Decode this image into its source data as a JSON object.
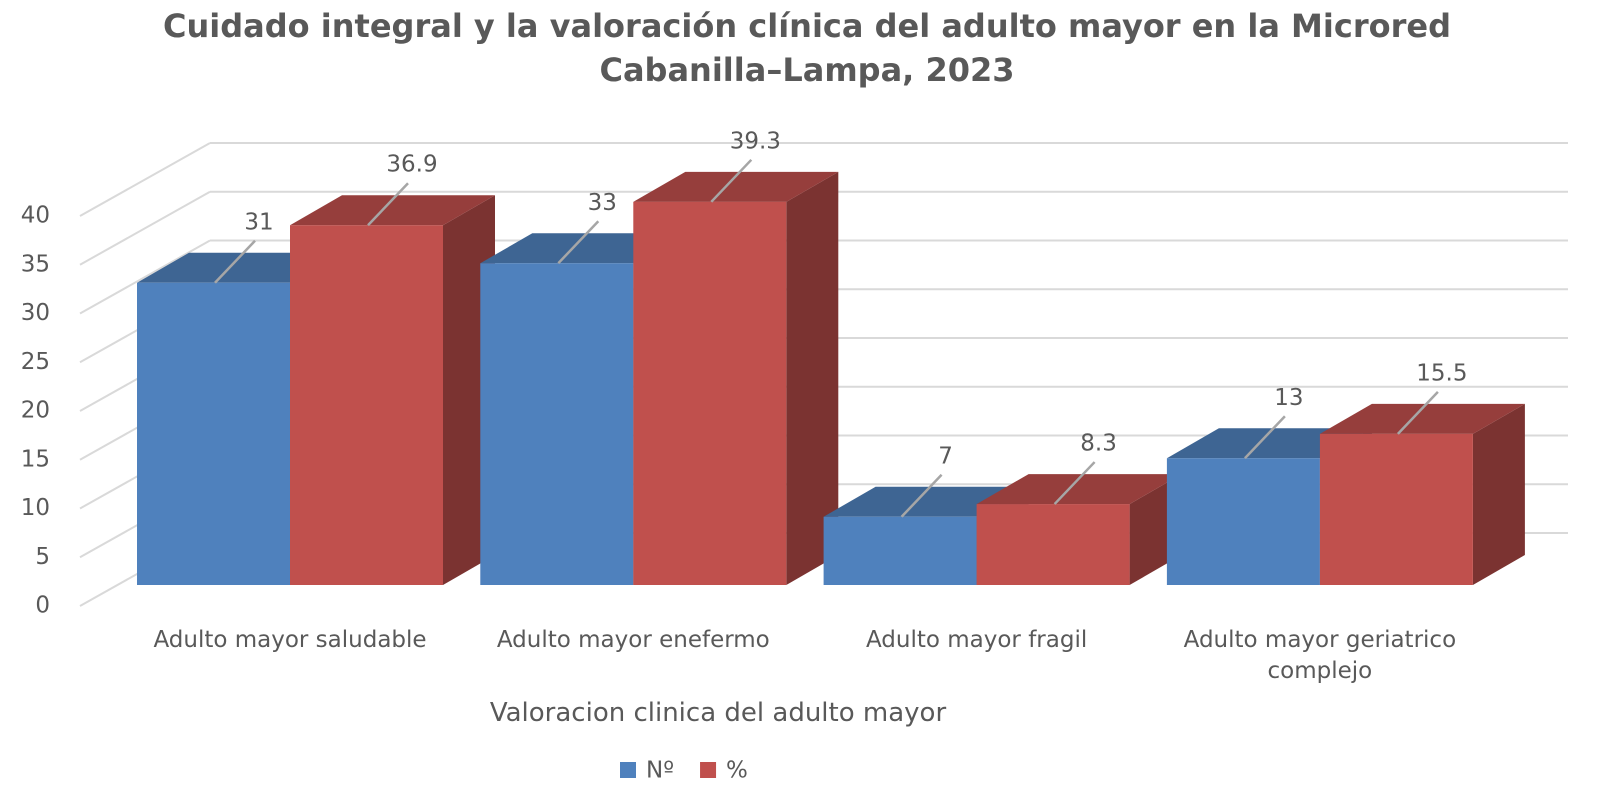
{
  "chart_data": {
    "type": "bar3d",
    "title": "Cuidado integral y la valoración clínica del adulto mayor en la Microred Cabanilla–Lampa,  2023",
    "x_label": "Valoracion clinica del adulto mayor",
    "categories": [
      "Adulto mayor saludable",
      "Adulto mayor enefermo",
      "Adulto mayor fragil",
      "Adulto mayor geriatrico complejo"
    ],
    "series": [
      {
        "name": "Nº",
        "color": "#4f81bd",
        "values": [
          31,
          33,
          7,
          13
        ]
      },
      {
        "name": "%",
        "color": "#c0504d",
        "values": [
          36.9,
          39.3,
          8.3,
          15.5
        ]
      }
    ],
    "ylim": [
      0,
      40
    ],
    "yticks": [
      0,
      5,
      10,
      15,
      20,
      25,
      30,
      35,
      40
    ],
    "grid": true,
    "legend": "bottom"
  }
}
